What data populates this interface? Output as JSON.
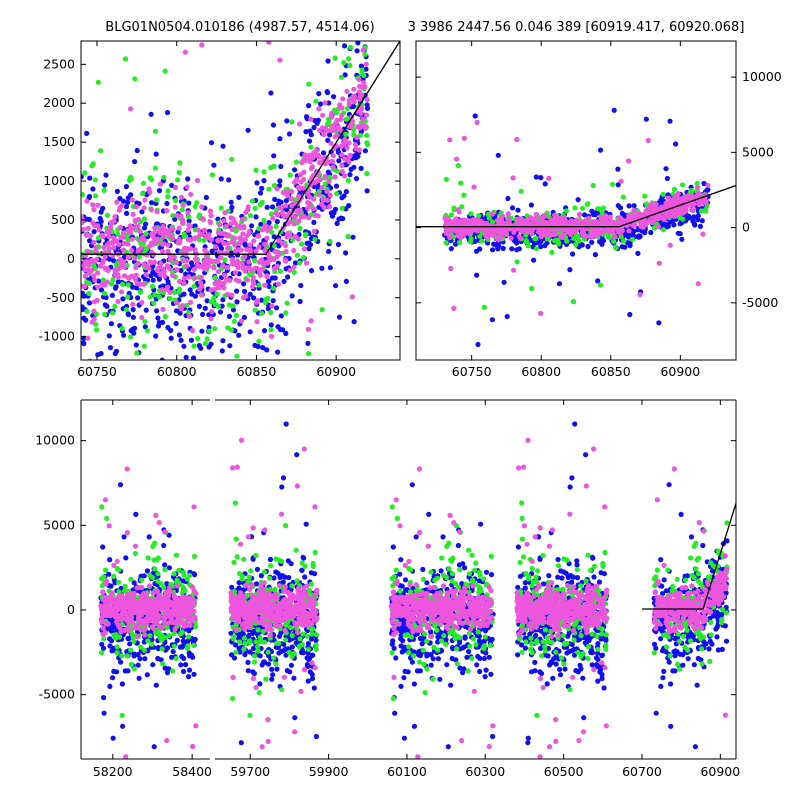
{
  "title_left": "BLG01N0504.010186 (4987.57, 4514.06)",
  "title_right": "3 3986 2447.56 0.046 389 [60919.417, 60920.068]",
  "chart_data": [
    {
      "panel": "top-left",
      "type": "scatter",
      "xlim": [
        60740,
        60940
      ],
      "ylim": [
        -1300,
        2800
      ],
      "x_ticks": [
        "60750",
        "60800",
        "60850",
        "60900"
      ],
      "y_ticks": [
        "2500",
        "2000",
        "1500",
        "1000",
        "500",
        "0",
        "-500",
        "-1000"
      ],
      "y_axis_side": "left",
      "series_colors": [
        "#1010ee",
        "#22ee22",
        "#ee55dd"
      ],
      "model_line": [
        [
          60740,
          60
        ],
        [
          60856,
          60
        ],
        [
          60940,
          2800
        ]
      ]
    },
    {
      "panel": "top-right",
      "type": "scatter",
      "xlim": [
        60710,
        60940
      ],
      "ylim": [
        -8800,
        12400
      ],
      "x_ticks": [
        "60750",
        "60800",
        "60850",
        "60900"
      ],
      "y_ticks": [
        "10000",
        "5000",
        "0",
        "-5000"
      ],
      "y_axis_side": "right",
      "series_colors": [
        "#1010ee",
        "#22ee22",
        "#ee55dd"
      ],
      "model_line": [
        [
          60710,
          60
        ],
        [
          60856,
          60
        ],
        [
          60940,
          2800
        ]
      ]
    },
    {
      "panel": "bottom",
      "type": "scatter",
      "broken_x_axis": true,
      "ylim": [
        -8800,
        12400
      ],
      "y_ticks": [
        "10000",
        "5000",
        "0",
        "-5000"
      ],
      "y_axis_side": "left",
      "segments": [
        {
          "xlim": [
            58120,
            58445
          ],
          "ticks": [
            "58200",
            "58400"
          ]
        },
        {
          "xlim": [
            59610,
            60940
          ],
          "ticks": [
            "59700",
            "59900",
            "60100",
            "60300",
            "60500",
            "60700",
            "60900"
          ]
        }
      ],
      "seasons": [
        [
          58170,
          58410
        ],
        [
          59650,
          59870
        ],
        [
          60060,
          60320
        ],
        [
          60380,
          60610
        ],
        [
          60730,
          60920
        ]
      ],
      "series_colors": [
        "#1010ee",
        "#22ee22",
        "#ee55dd"
      ],
      "model_line": [
        [
          60700,
          60
        ],
        [
          60856,
          60
        ],
        [
          60940,
          6300
        ]
      ]
    }
  ]
}
